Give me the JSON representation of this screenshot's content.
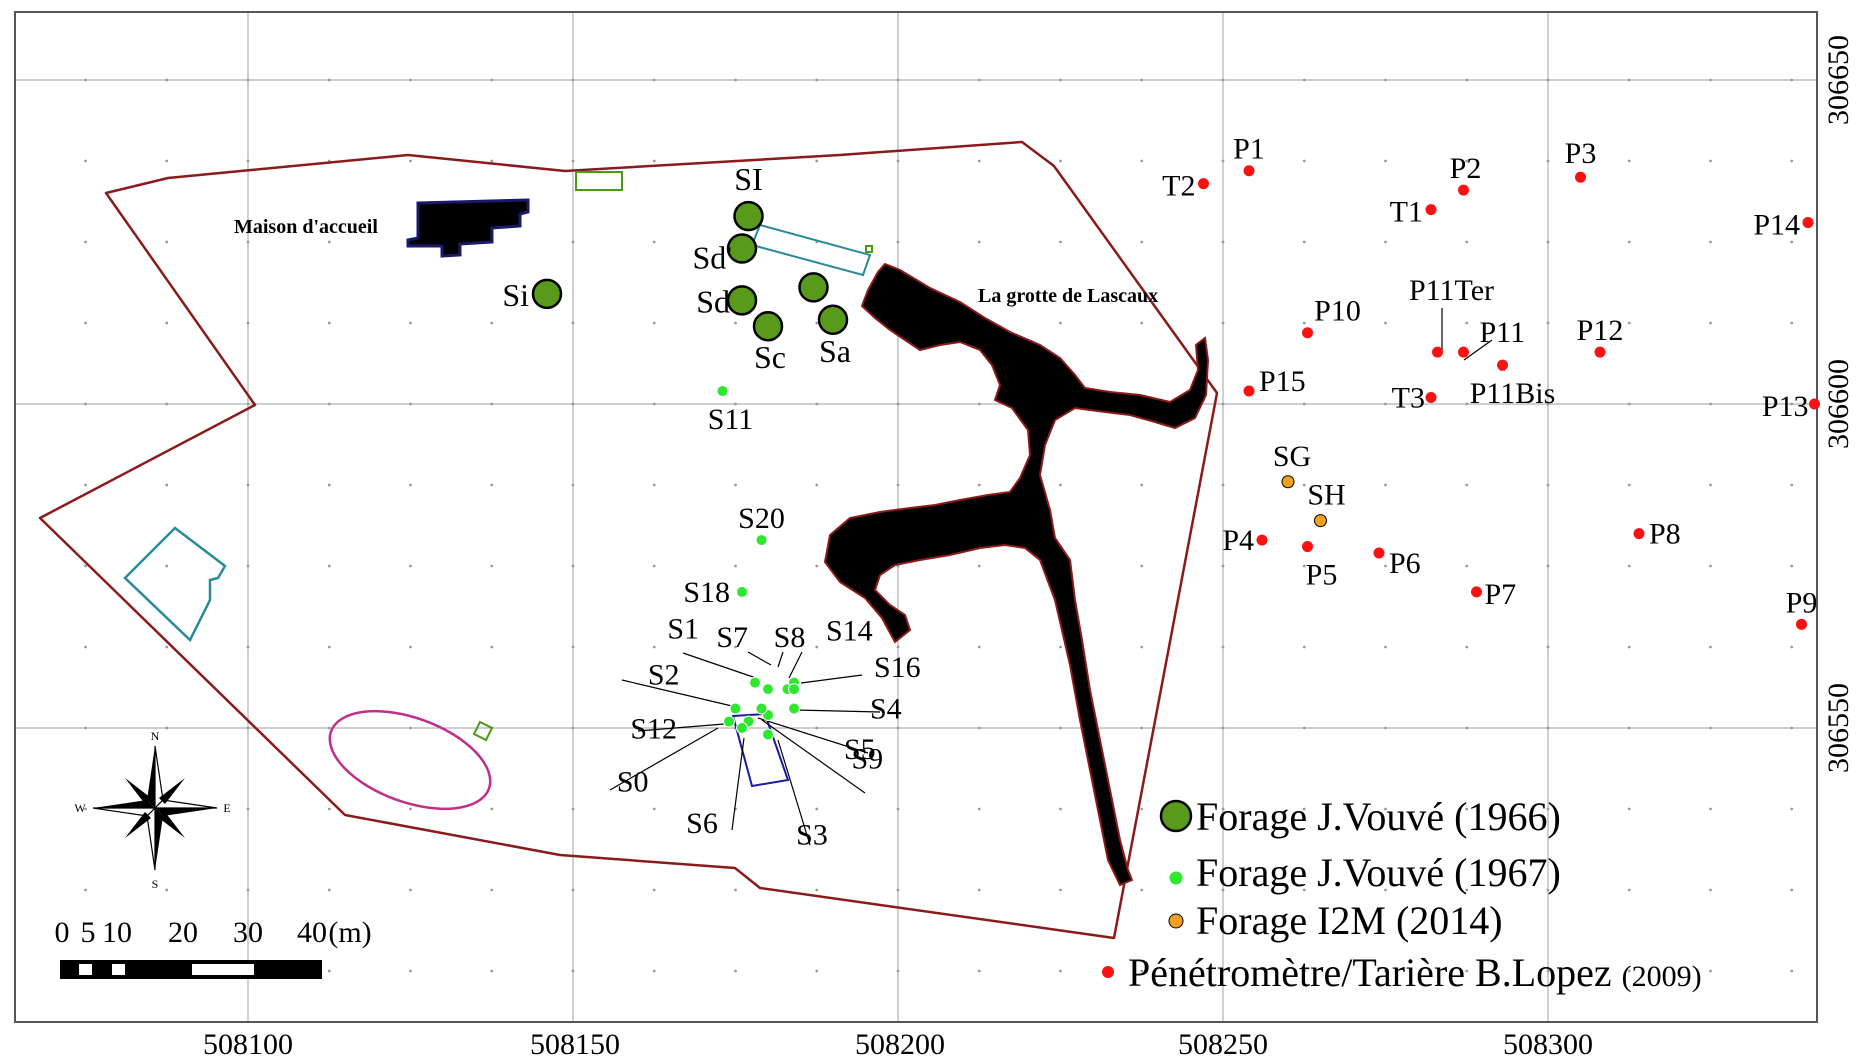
{
  "axes": {
    "x_ticks": [
      "508100",
      "508150",
      "508200",
      "508250",
      "508300"
    ],
    "y_ticks": [
      "306650",
      "306600",
      "306550"
    ]
  },
  "places": {
    "maison": "Maison d'accueil",
    "grotte": "La grotte de Lascaux"
  },
  "big_boreholes": [
    {
      "label": "SI",
      "x": 508177,
      "y": 306629
    },
    {
      "label": "Sd'",
      "x": 508176,
      "y": 306624
    },
    {
      "label": "Sd",
      "x": 508176,
      "y": 306616
    },
    {
      "label": "Sc",
      "x": 508180,
      "y": 306612
    },
    {
      "label": "Sa",
      "x": 508190,
      "y": 306613
    },
    {
      "label": "",
      "x": 508187,
      "y": 306618
    },
    {
      "label": "Si",
      "x": 508146,
      "y": 306617
    }
  ],
  "small_boreholes": [
    {
      "label": "S11",
      "x": 508173,
      "y": 306602
    },
    {
      "label": "S20",
      "x": 508179,
      "y": 306579
    },
    {
      "label": "S18",
      "x": 508176,
      "y": 306571
    },
    {
      "label": "S1",
      "x": 508178,
      "y": 306557
    },
    {
      "label": "S7",
      "x": 508180,
      "y": 306556
    },
    {
      "label": "S8",
      "x": 508183,
      "y": 306556
    },
    {
      "label": "S14",
      "x": 508184,
      "y": 306557
    },
    {
      "label": "S16",
      "x": 508184,
      "y": 306556
    },
    {
      "label": "S2",
      "x": 508175,
      "y": 306553
    },
    {
      "label": "S4",
      "x": 508184,
      "y": 306553
    },
    {
      "label": "S12",
      "x": 508174,
      "y": 306551
    },
    {
      "label": "S5",
      "x": 508180,
      "y": 306552
    },
    {
      "label": "S0",
      "x": 508177,
      "y": 306551
    },
    {
      "label": "S9",
      "x": 508179,
      "y": 306553
    },
    {
      "label": "S6",
      "x": 508176,
      "y": 306550
    },
    {
      "label": "S3",
      "x": 508180,
      "y": 306549
    }
  ],
  "i2m_boreholes": [
    {
      "label": "SG",
      "x": 508260,
      "y": 306588
    },
    {
      "label": "SH",
      "x": 508265,
      "y": 306582
    }
  ],
  "penetrometer_points": [
    {
      "label": "P1",
      "x": 508254,
      "y": 306636
    },
    {
      "label": "T2",
      "x": 508247,
      "y": 306634
    },
    {
      "label": "P2",
      "x": 508287,
      "y": 306633
    },
    {
      "label": "T1",
      "x": 508282,
      "y": 306630
    },
    {
      "label": "P3",
      "x": 508305,
      "y": 306635
    },
    {
      "label": "P14",
      "x": 508340,
      "y": 306628
    },
    {
      "label": "P10",
      "x": 508263,
      "y": 306611
    },
    {
      "label": "P11Ter",
      "x": 508283,
      "y": 306608
    },
    {
      "label": "P11",
      "x": 508287,
      "y": 306608
    },
    {
      "label": "P11Bis",
      "x": 508293,
      "y": 306606
    },
    {
      "label": "P12",
      "x": 508308,
      "y": 306608
    },
    {
      "label": "P15",
      "x": 508254,
      "y": 306602
    },
    {
      "label": "T3",
      "x": 508282,
      "y": 306601
    },
    {
      "label": "P13",
      "x": 508341,
      "y": 306600
    },
    {
      "label": "P4",
      "x": 508256,
      "y": 306579
    },
    {
      "label": "P5",
      "x": 508263,
      "y": 306578
    },
    {
      "label": "P6",
      "x": 508274,
      "y": 306577
    },
    {
      "label": "P8",
      "x": 508314,
      "y": 306580
    },
    {
      "label": "P7",
      "x": 508289,
      "y": 306571
    },
    {
      "label": "P9",
      "x": 508339,
      "y": 306566
    }
  ],
  "legend": {
    "big": "Forage J.Vouvé (1966)",
    "small": "Forage J.Vouvé (1967)",
    "i2m": "Forage I2M (2014)",
    "pen_main": "Pénétromètre/Tarière B.Lopez",
    "pen_year": "(2009)"
  },
  "compass": {
    "n": "N",
    "s": "S",
    "e": "E",
    "w": "W"
  },
  "scale": {
    "ticks": [
      "0",
      "5",
      "10",
      "20",
      "30",
      "40"
    ],
    "unit": "(m)"
  },
  "colors": {
    "boundary": "#8b1a1a",
    "big_borehole": "#5a9a1a",
    "small_borehole": "#2ee82e",
    "i2m": "#f0a020",
    "penetrometer": "#ff1010",
    "building": "#0b0b3a",
    "cave": "#000000",
    "teal": "#2a8a9a",
    "magenta": "#c0308a",
    "grid": "#b0b0b0"
  }
}
